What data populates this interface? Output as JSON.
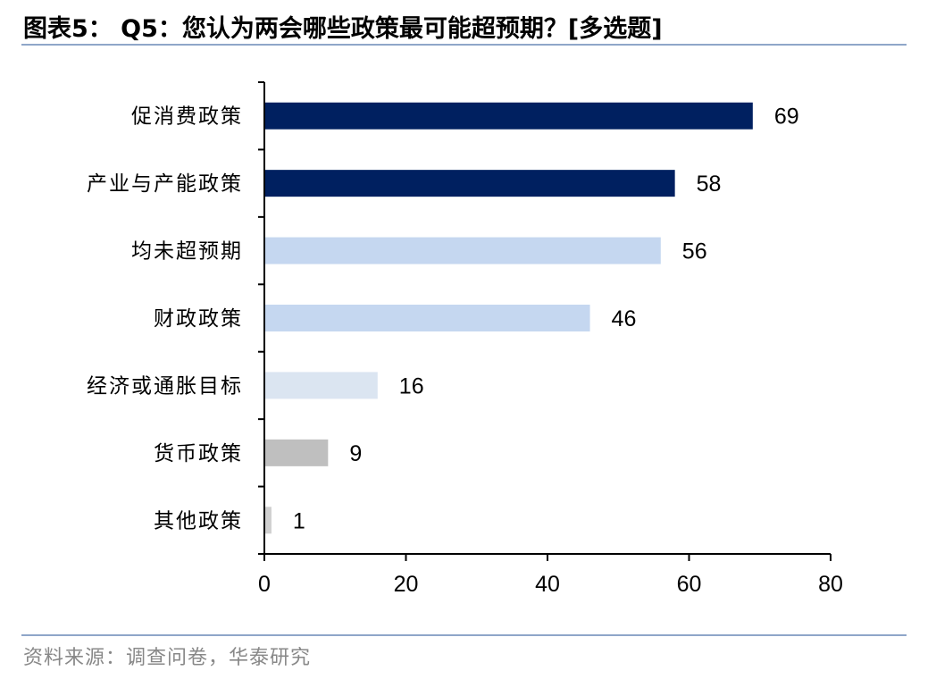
{
  "header": {
    "title": "图表5： Q5：您认为两会哪些政策最可能超预期？[多选题]"
  },
  "footer": {
    "source": "资料来源：调查问卷，华泰研究"
  },
  "chart_data": {
    "type": "bar",
    "orientation": "horizontal",
    "title": "",
    "xlabel": "",
    "ylabel": "",
    "categories": [
      "促消费政策",
      "产业与产能政策",
      "均未超预期",
      "财政政策",
      "经济或通胀目标",
      "货币政策",
      "其他政策"
    ],
    "values": [
      69,
      58,
      56,
      46,
      16,
      9,
      1
    ],
    "colors": [
      "#002060",
      "#002060",
      "#c5d7f0",
      "#c5d7f0",
      "#dbe5f1",
      "#bfbfbf",
      "#d0d0d0"
    ],
    "xlim": [
      0,
      80
    ],
    "xticks": [
      0,
      20,
      40,
      60,
      80
    ],
    "grid": false,
    "legend": "none"
  }
}
